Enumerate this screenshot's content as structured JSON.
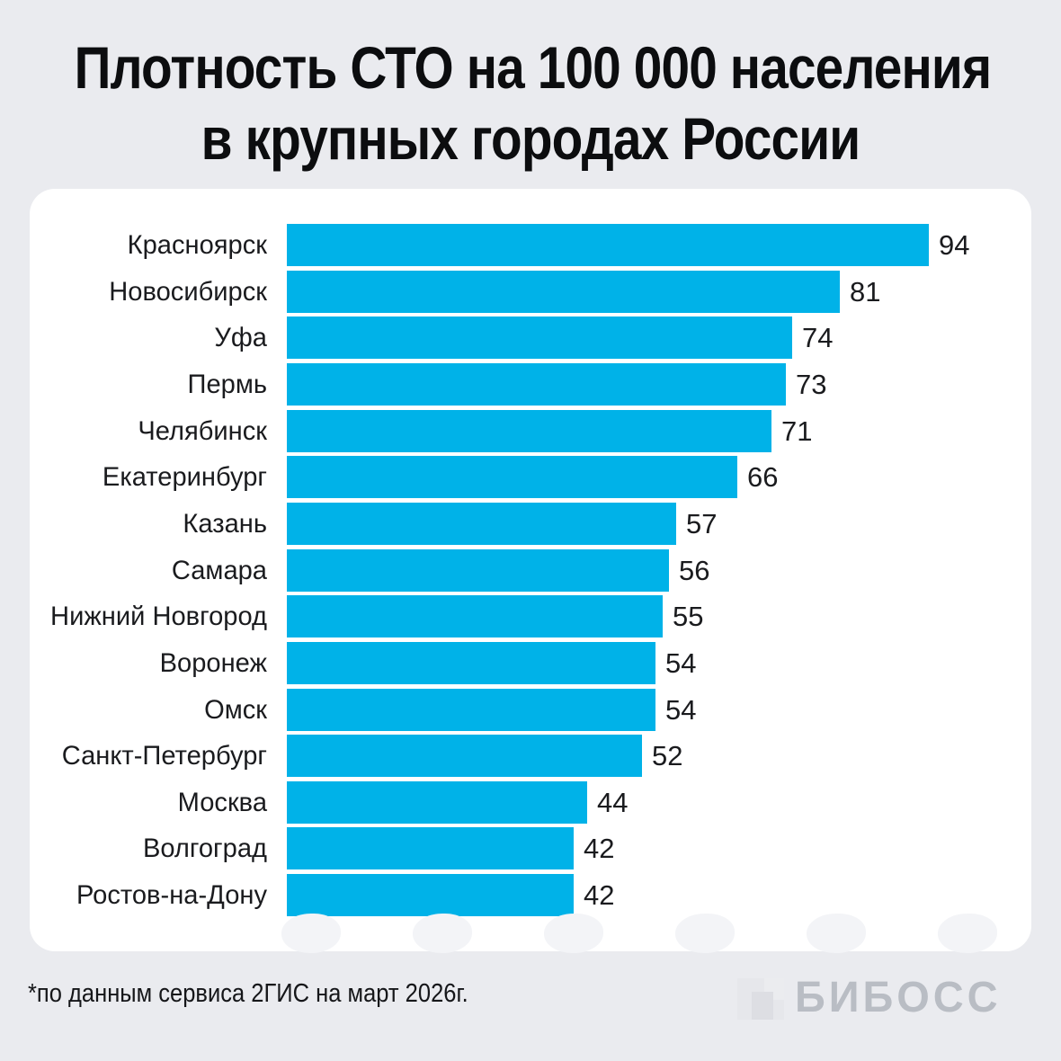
{
  "title": {
    "line1": "Плотность СТО на 100 000 населения",
    "line2": "в крупных городах России"
  },
  "footnote": "*по данным сервиса 2ГИС на март 2026г.",
  "logo": {
    "text": "БИБОСС"
  },
  "colors": {
    "background": "#eaebef",
    "panel": "#ffffff",
    "bar": "#00b2e8",
    "title_text": "#0c0d0f",
    "label_text": "#1a1b1e",
    "logo_text": "#b9bdc4"
  },
  "chart_data": {
    "type": "bar",
    "orientation": "horizontal",
    "title": "Плотность СТО на 100 000 населения в крупных городах России",
    "categories": [
      "Красноярск",
      "Новосибирск",
      "Уфа",
      "Пермь",
      "Челябинск",
      "Екатеринбург",
      "Казань",
      "Самара",
      "Нижний Новгород",
      "Воронеж",
      "Омск",
      "Санкт-Петербург",
      "Москва",
      "Волгоград",
      "Ростов-на-Дону"
    ],
    "values": [
      94,
      81,
      74,
      73,
      71,
      66,
      57,
      56,
      55,
      54,
      54,
      52,
      44,
      42,
      42
    ],
    "xlim": [
      0,
      100
    ],
    "grid": false,
    "legend": false,
    "value_labels": "end-of-bar"
  }
}
